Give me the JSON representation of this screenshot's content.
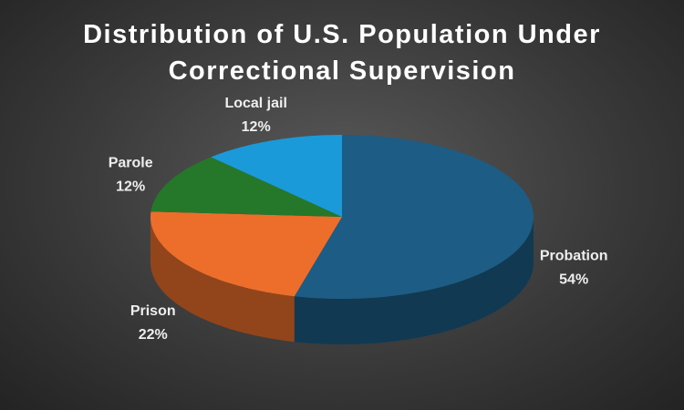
{
  "chart_data": {
    "type": "pie3d",
    "title": "Distribution of U.S. Population Under Correctional Supervision",
    "categories": [
      "Probation",
      "Prison",
      "Parole",
      "Local jail"
    ],
    "values": [
      54,
      22,
      12,
      12
    ],
    "value_labels": [
      "54%",
      "22%",
      "12%",
      "12%"
    ],
    "colors": [
      "#1d5c84",
      "#ec6e2a",
      "#25772a",
      "#1a9ad8"
    ]
  }
}
